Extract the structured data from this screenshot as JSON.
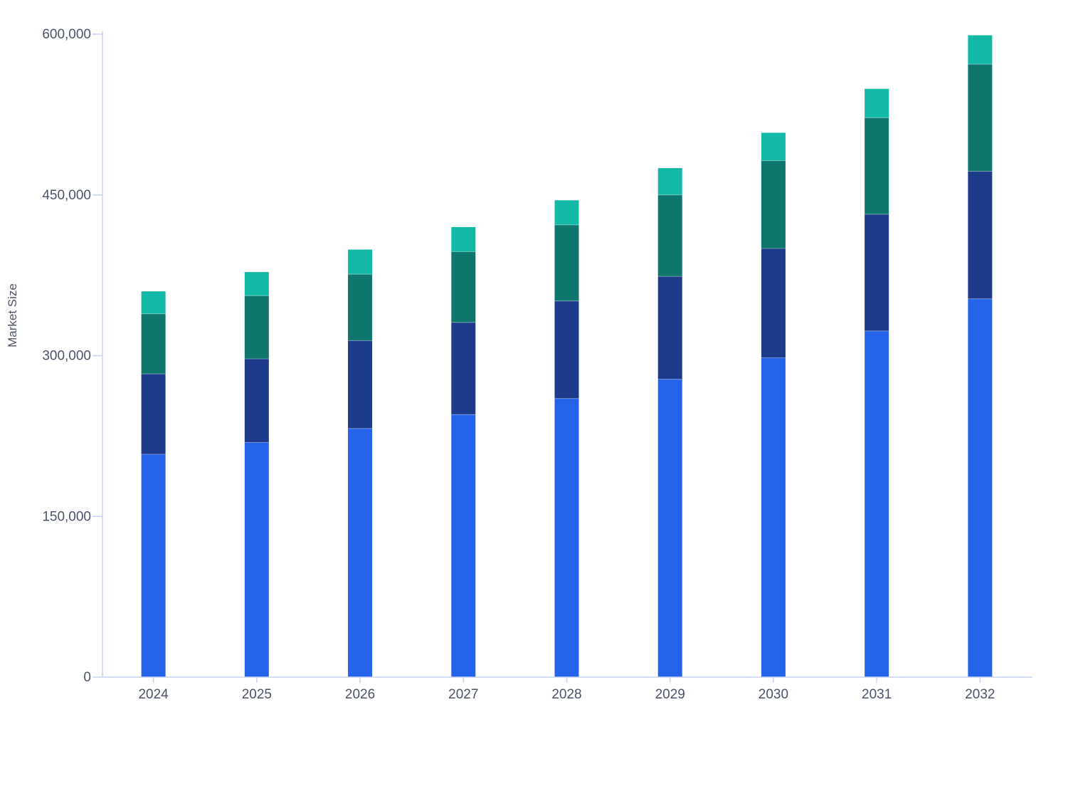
{
  "chart_data": {
    "type": "bar",
    "stacked": true,
    "title": "",
    "xlabel": "",
    "ylabel": "Market Size",
    "ylim": [
      0,
      600000
    ],
    "yticks": [
      "0",
      "150,000",
      "300,000",
      "450,000",
      "600,000"
    ],
    "ytick_values": [
      0,
      150000,
      300000,
      450000,
      600000
    ],
    "grid": false,
    "legend": "none",
    "categories": [
      "2024",
      "2025",
      "2026",
      "2027",
      "2028",
      "2029",
      "2030",
      "2031",
      "2032"
    ],
    "series": [
      {
        "color": "#2563eb",
        "values": [
          208000,
          219000,
          232000,
          245000,
          260000,
          278000,
          298000,
          323000,
          353000
        ]
      },
      {
        "color": "#1e3a8a",
        "values": [
          75000,
          78000,
          82000,
          86000,
          91000,
          96000,
          102000,
          109000,
          119000
        ]
      },
      {
        "color": "#0f766e",
        "values": [
          56000,
          59000,
          62000,
          66000,
          71000,
          76000,
          82000,
          90000,
          100000
        ]
      },
      {
        "color": "#14b8a6",
        "values": [
          21000,
          22000,
          23000,
          23000,
          23000,
          25000,
          26000,
          27000,
          27000
        ]
      }
    ],
    "axis_color": "#c7d2f0"
  }
}
